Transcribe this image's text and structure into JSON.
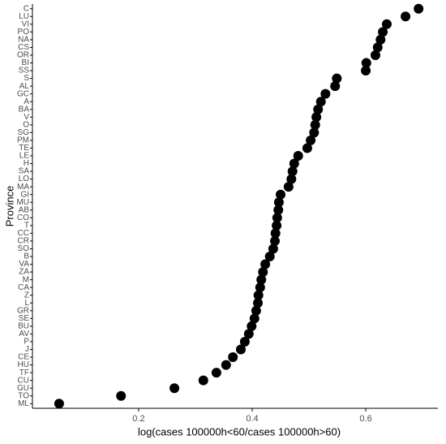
{
  "chart_data": {
    "type": "scatter",
    "x_label": "log(cases 100000h<60/cases 100000h>60)",
    "y_label": "Province",
    "categories": [
      "ML",
      "TO",
      "GU",
      "CU",
      "TF",
      "HU",
      "CE",
      "J",
      "P",
      "AV",
      "BU",
      "SE",
      "GR",
      "L",
      "Z",
      "CA",
      "M",
      "ZA",
      "VA",
      "B",
      "SO",
      "CR",
      "CC",
      "T",
      "CO",
      "AB",
      "MU",
      "GI",
      "MA",
      "LO",
      "SA",
      "H",
      "LE",
      "TE",
      "PM",
      "SG",
      "O",
      "V",
      "BA",
      "A",
      "GC",
      "AL",
      "S",
      "SS",
      "BI",
      "OR",
      "CS",
      "NA",
      "PO",
      "VI",
      "LU",
      "C"
    ],
    "values": [
      0.06,
      0.169,
      0.263,
      0.314,
      0.337,
      0.354,
      0.366,
      0.38,
      0.387,
      0.394,
      0.399,
      0.404,
      0.407,
      0.41,
      0.411,
      0.414,
      0.416,
      0.419,
      0.423,
      0.431,
      0.437,
      0.44,
      0.441,
      0.443,
      0.444,
      0.446,
      0.447,
      0.45,
      0.464,
      0.469,
      0.471,
      0.474,
      0.481,
      0.497,
      0.503,
      0.509,
      0.511,
      0.513,
      0.516,
      0.521,
      0.529,
      0.546,
      0.549,
      0.6,
      0.601,
      0.617,
      0.621,
      0.626,
      0.63,
      0.637,
      0.67,
      0.693
    ],
    "color": "#000000",
    "xlim": [
      0.013,
      0.727
    ],
    "xticks": [
      0.2,
      0.4,
      0.6
    ],
    "grid": false
  }
}
